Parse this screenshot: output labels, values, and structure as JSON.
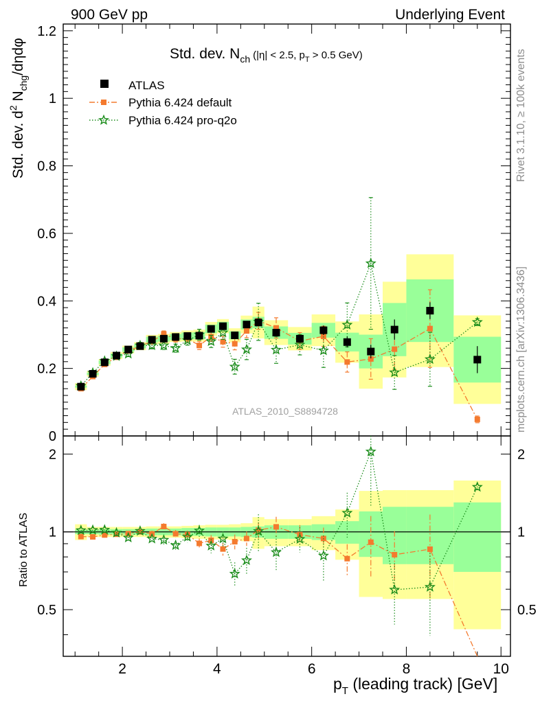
{
  "chart_data": {
    "type": "scatter",
    "header_left": "900 GeV pp",
    "header_right": "Underlying Event",
    "title_main": "Std. dev. N",
    "title_main_sub": "ch",
    "title_cut_1": "(|η| < 2.5, p",
    "title_cut_sub": "T",
    "title_cut_2": " > 0.5 GeV)",
    "ylabel_main": "Std. dev. d",
    "ylabel_sup": "2",
    "ylabel_n": " N",
    "ylabel_sub": "chg",
    "ylabel_tail": "/dηdφ",
    "ratio_ylabel": "Ratio to ATLAS",
    "xlabel_main": "p",
    "xlabel_sub": "T",
    "xlabel_tail": " (leading track) [GeV]",
    "watermark": "ATLAS_2010_S8894728",
    "side_label_1": "Rivet 3.1.10, ≥ 100k events",
    "side_label_2": "mcplots.cern.ch [arXiv:1306.3436]",
    "xlim": [
      0.75,
      10.2
    ],
    "ylim": [
      0,
      1.22
    ],
    "ratio_ylim": [
      0.33,
      2.35
    ],
    "ratio_scale": "log",
    "xticks": [
      2,
      4,
      6,
      8,
      10
    ],
    "yticks": [
      0,
      0.2,
      0.4,
      0.6,
      0.8,
      1,
      1.2
    ],
    "yticklabels": [
      "0",
      "0.2",
      "0.4",
      "0.6",
      "0.8",
      "1",
      "1.2"
    ],
    "ratio_yticks": [
      0.5,
      1,
      2
    ],
    "ratio_yticklabels": [
      "0.5",
      "1",
      "2"
    ],
    "legend_placement": "top-left",
    "bins": [
      [
        1.0,
        1.25
      ],
      [
        1.25,
        1.5
      ],
      [
        1.5,
        1.75
      ],
      [
        1.75,
        2.0
      ],
      [
        2.0,
        2.25
      ],
      [
        2.25,
        2.5
      ],
      [
        2.5,
        2.75
      ],
      [
        2.75,
        3.0
      ],
      [
        3.0,
        3.25
      ],
      [
        3.25,
        3.5
      ],
      [
        3.5,
        3.75
      ],
      [
        3.75,
        4.0
      ],
      [
        4.0,
        4.25
      ],
      [
        4.25,
        4.5
      ],
      [
        4.5,
        4.75
      ],
      [
        4.75,
        5.0
      ],
      [
        5.0,
        5.5
      ],
      [
        5.5,
        6.0
      ],
      [
        6.0,
        6.5
      ],
      [
        6.5,
        7.0
      ],
      [
        7.0,
        7.5
      ],
      [
        7.5,
        8.0
      ],
      [
        8.0,
        9.0
      ],
      [
        9.0,
        10.0
      ]
    ],
    "x": [
      1.125,
      1.375,
      1.625,
      1.875,
      2.125,
      2.375,
      2.625,
      2.875,
      3.125,
      3.375,
      3.625,
      3.875,
      4.125,
      4.375,
      4.625,
      4.875,
      5.25,
      5.75,
      6.25,
      6.75,
      7.25,
      7.75,
      8.5,
      9.5
    ],
    "band_stat": [
      0.02,
      0.02,
      0.025,
      0.025,
      0.025,
      0.025,
      0.03,
      0.03,
      0.03,
      0.035,
      0.035,
      0.04,
      0.04,
      0.04,
      0.045,
      0.05,
      0.06,
      0.06,
      0.07,
      0.1,
      0.2,
      0.25,
      0.25,
      0.3
    ],
    "band_tot": [
      0.07,
      0.045,
      0.045,
      0.045,
      0.045,
      0.045,
      0.05,
      0.05,
      0.05,
      0.055,
      0.06,
      0.065,
      0.065,
      0.07,
      0.08,
      0.14,
      0.12,
      0.12,
      0.15,
      0.22,
      0.44,
      0.45,
      0.45,
      0.58
    ],
    "series": [
      {
        "name": "ATLAS",
        "color": "#000000",
        "marker": "square",
        "values": [
          0.146,
          0.184,
          0.218,
          0.238,
          0.256,
          0.266,
          0.285,
          0.288,
          0.293,
          0.296,
          0.297,
          0.317,
          0.325,
          0.298,
          0.33,
          0.336,
          0.306,
          0.288,
          0.313,
          0.278,
          0.25,
          0.315,
          0.371,
          0.226
        ],
        "errors": [
          0.002,
          0.002,
          0.002,
          0.002,
          0.003,
          0.003,
          0.003,
          0.003,
          0.004,
          0.004,
          0.005,
          0.005,
          0.006,
          0.007,
          0.008,
          0.009,
          0.01,
          0.012,
          0.014,
          0.016,
          0.02,
          0.03,
          0.025,
          0.04
        ]
      },
      {
        "name": "Pythia 6.424 default",
        "color": "#f47a2e",
        "marker": "square",
        "linestyle": "dashdot",
        "values": [
          0.14,
          0.176,
          0.212,
          0.233,
          0.252,
          0.266,
          0.28,
          0.302,
          0.288,
          0.289,
          0.268,
          0.294,
          0.279,
          0.273,
          0.311,
          0.341,
          0.32,
          0.281,
          0.295,
          0.219,
          0.228,
          0.257,
          0.318,
          0.049
        ],
        "errors": [
          0.003,
          0.004,
          0.005,
          0.005,
          0.006,
          0.007,
          0.008,
          0.009,
          0.01,
          0.01,
          0.012,
          0.014,
          0.016,
          0.018,
          0.02,
          0.025,
          0.03,
          0.025,
          0.03,
          0.03,
          0.06,
          0.06,
          0.115,
          0.01
        ]
      },
      {
        "name": "Pythia 6.424 pro-q2o",
        "color": "#1a8c1a",
        "marker": "star",
        "linestyle": "dotted",
        "values": [
          0.148,
          0.187,
          0.222,
          0.236,
          0.243,
          0.268,
          0.268,
          0.268,
          0.26,
          0.283,
          0.3,
          0.28,
          0.306,
          0.205,
          0.256,
          0.338,
          0.255,
          0.27,
          0.253,
          0.329,
          0.511,
          0.188,
          0.227,
          0.337
        ],
        "errors": [
          0.004,
          0.005,
          0.006,
          0.007,
          0.008,
          0.009,
          0.01,
          0.012,
          0.012,
          0.014,
          0.016,
          0.018,
          0.02,
          0.022,
          0.03,
          0.055,
          0.04,
          0.03,
          0.05,
          0.065,
          0.195,
          0.05,
          0.08,
          0.01
        ]
      }
    ]
  }
}
